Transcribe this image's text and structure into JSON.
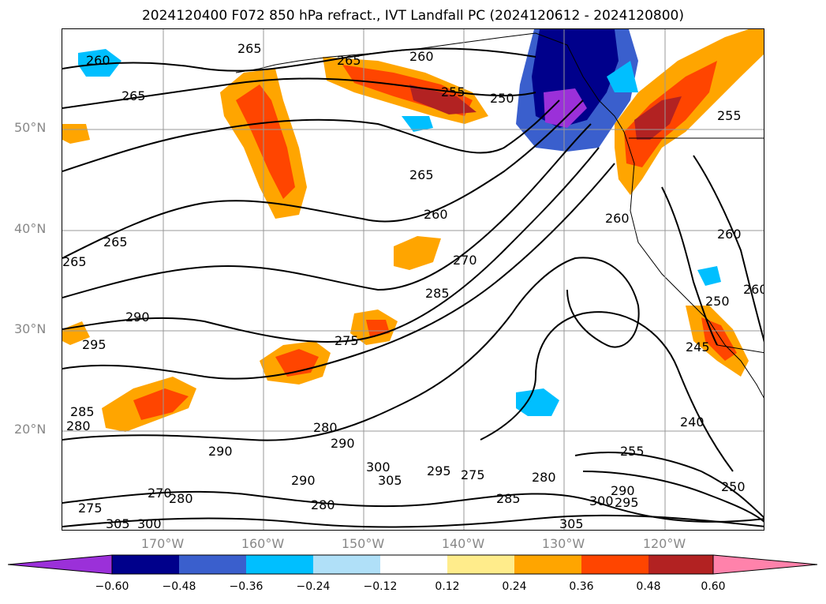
{
  "title": "2024120400 F072 850 hPa refract., IVT Landfall PC (2024120612 - 2024120800)",
  "lat_labels": [
    {
      "text": "50°N",
      "lat": 50
    },
    {
      "text": "40°N",
      "lat": 40
    },
    {
      "text": "30°N",
      "lat": 30
    },
    {
      "text": "20°N",
      "lat": 20
    }
  ],
  "lon_labels": [
    {
      "text": "170°W",
      "lon": -170
    },
    {
      "text": "160°W",
      "lon": -160
    },
    {
      "text": "150°W",
      "lon": -150
    },
    {
      "text": "140°W",
      "lon": -140
    },
    {
      "text": "130°W",
      "lon": -130
    },
    {
      "text": "120°W",
      "lon": -120
    }
  ],
  "colorbar": {
    "ticks": [
      "−0.60",
      "−0.48",
      "−0.36",
      "−0.24",
      "−0.12",
      "0.12",
      "0.24",
      "0.36",
      "0.48",
      "0.60"
    ],
    "colors": {
      "under": "#9b30d9",
      "c1": "#00008b",
      "c2": "#3a5fcd",
      "c3": "#00bfff",
      "c4": "#b0e0f8",
      "c5": "#ffffff",
      "c6": "#ffec8b",
      "c7": "#ffa500",
      "c8": "#ff4500",
      "c9": "#b22222",
      "over": "#ff82ab"
    }
  },
  "contour_labels": [
    {
      "text": "260"
    },
    {
      "text": "265"
    },
    {
      "text": "265"
    },
    {
      "text": "265"
    },
    {
      "text": "260"
    },
    {
      "text": "255"
    },
    {
      "text": "250"
    },
    {
      "text": "265"
    },
    {
      "text": "260"
    },
    {
      "text": "270"
    },
    {
      "text": "285"
    },
    {
      "text": "275"
    },
    {
      "text": "265"
    },
    {
      "text": "265"
    },
    {
      "text": "290"
    },
    {
      "text": "295"
    },
    {
      "text": "285"
    },
    {
      "text": "280"
    },
    {
      "text": "290"
    },
    {
      "text": "280"
    },
    {
      "text": "290"
    },
    {
      "text": "300"
    },
    {
      "text": "305"
    },
    {
      "text": "290"
    },
    {
      "text": "270"
    },
    {
      "text": "280"
    },
    {
      "text": "280"
    },
    {
      "text": "275"
    },
    {
      "text": "305"
    },
    {
      "text": "300"
    },
    {
      "text": "295"
    },
    {
      "text": "275"
    },
    {
      "text": "285"
    },
    {
      "text": "280"
    },
    {
      "text": "305"
    },
    {
      "text": "290"
    },
    {
      "text": "300"
    },
    {
      "text": "295"
    },
    {
      "text": "255"
    },
    {
      "text": "240"
    },
    {
      "text": "250"
    },
    {
      "text": "260"
    },
    {
      "text": "260"
    },
    {
      "text": "250"
    },
    {
      "text": "245"
    },
    {
      "text": "260"
    },
    {
      "text": "255"
    }
  ]
}
